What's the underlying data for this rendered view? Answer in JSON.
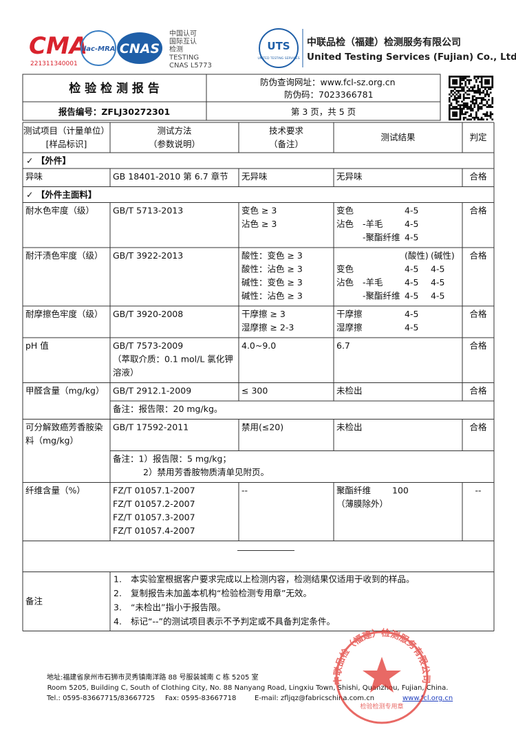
{
  "header": {
    "cma": {
      "mark": "CMA",
      "number": "221311340001"
    },
    "ilac": "ilac-MRA",
    "cnas": "CNAS",
    "accreditation": [
      "中国认可",
      "国际互认",
      "检测",
      "TESTING",
      "CNAS L5773"
    ],
    "uts": {
      "mark": "UTS",
      "sub": "UNITED TESTING SERVICES"
    },
    "company_cn": "中联品检（福建）检测服务有限公司",
    "company_en": "United Testing Services (Fujian) Co., Ltd."
  },
  "report": {
    "title": "检 验 检 测 报 告",
    "verify_url": "防伪查询网址：www.fcl-sz.org.cn",
    "verify_code": "防伪码：7023366781",
    "report_no": "报告编号：ZFLJ30272301",
    "page": "第 3 页，共 5 页"
  },
  "table": {
    "headers": [
      [
        "测试项目（计量单位）",
        "[样品标识]"
      ],
      [
        "测试方法",
        "（参数说明）"
      ],
      [
        "技术要求",
        "（备注）"
      ],
      [
        "测试结果"
      ],
      [
        "判定"
      ]
    ],
    "rows": [
      {
        "section": "✓ 【外件】"
      },
      {
        "item": [
          "异味"
        ],
        "method": [
          "GB 18401-2010 第 6.7 章节"
        ],
        "requirement": [
          "无异味"
        ],
        "result": [
          {
            "label": "无异味"
          }
        ],
        "verdict": "合格"
      },
      {
        "section": "✓ 【外件主面料】"
      },
      {
        "item": [
          "耐水色牢度（级）"
        ],
        "method": [
          "GB/T 5713-2013"
        ],
        "requirement": [
          "变色 ≥ 3",
          "沾色 ≥ 3"
        ],
        "result": [
          {
            "label": "变色",
            "values": [
              "4-5"
            ]
          },
          {
            "label": "沾色",
            "sub": "-羊毛",
            "values": [
              "4-5"
            ]
          },
          {
            "sub": "-聚酯纤维",
            "values": [
              "4-5"
            ]
          }
        ],
        "verdict": "合格"
      },
      {
        "item": [
          "耐汗渍色牢度（级）"
        ],
        "method": [
          "GB/T 3922-2013"
        ],
        "requirement": [
          "酸性：变色 ≥ 3",
          "酸性：沾色 ≥ 3",
          "碱性：变色 ≥ 3",
          "碱性：沾色 ≥ 3"
        ],
        "result": [
          {
            "values": [
              "(酸性)",
              "(碱性)"
            ]
          },
          {
            "label": "变色",
            "values": [
              "4-5",
              "4-5"
            ]
          },
          {
            "label": "沾色",
            "sub": "-羊毛",
            "values": [
              "4-5",
              "4-5"
            ]
          },
          {
            "sub": "-聚酯纤维",
            "values": [
              "4-5",
              "4-5"
            ]
          }
        ],
        "verdict": "合格"
      },
      {
        "item": [
          "耐摩擦色牢度（级）"
        ],
        "method": [
          "GB/T 3920-2008"
        ],
        "requirement": [
          "干摩擦 ≥ 3",
          "湿摩擦 ≥ 2-3"
        ],
        "result": [
          {
            "label": "干摩擦",
            "values": [
              "4-5"
            ]
          },
          {
            "label": "湿摩擦",
            "values": [
              "4-5"
            ]
          }
        ],
        "verdict": "合格"
      },
      {
        "item": [
          "pH 值"
        ],
        "method": [
          "GB/T 7573-2009",
          "（萃取介质：0.1 mol/L 氯化钾",
          "溶液）"
        ],
        "requirement": [
          "4.0~9.0"
        ],
        "result": [
          {
            "label": "6.7"
          }
        ],
        "verdict": "合格"
      },
      {
        "item": [
          "甲醛含量（mg/kg）"
        ],
        "method": [
          "GB/T 2912.1-2009"
        ],
        "requirement": [
          "≤ 300"
        ],
        "result": [
          {
            "label": "未检出"
          }
        ],
        "verdict": "合格",
        "note": [
          "备注：报告限：20 mg/kg。"
        ]
      },
      {
        "item": [
          "可分解致癌芳香胺染",
          "料（mg/kg）"
        ],
        "method": [
          "GB/T 17592-2011"
        ],
        "requirement": [
          "禁用(≤20)"
        ],
        "result": [
          {
            "label": "未检出"
          }
        ],
        "verdict": "合格",
        "note": [
          "备注：1）报告限：5 mg/kg；",
          "2）禁用芳香胺物质清单见附页。"
        ]
      },
      {
        "item": [
          "纤维含量（%）"
        ],
        "method": [
          "FZ/T 01057.1-2007",
          "FZ/T 01057.2-2007",
          "FZ/T 01057.3-2007",
          "FZ/T 01057.4-2007"
        ],
        "requirement": [
          "--"
        ],
        "result": [
          {
            "label": "聚酯纤维",
            "fiber": "100"
          },
          {
            "label": "（薄膜除外）"
          }
        ],
        "verdict": "--"
      }
    ]
  },
  "remarks": {
    "label": "备注",
    "items": [
      {
        "number": "1.",
        "text": "本实验室根据客户要求完成以上检测内容，检测结果仅适用于收到的样品。"
      },
      {
        "number": "2.",
        "text": "复制报告未加盖本机构“检验检测专用章”无效。"
      },
      {
        "number": "3.",
        "text": "“未检出”指小于报告限。"
      },
      {
        "number": "4.",
        "text": "标记“--”的测试项目表示不予判定或不具备判定条件。"
      }
    ]
  },
  "footer": {
    "address_cn": "地址:福建省泉州市石狮市灵秀镇南洋路 88 号服装城南 C 栋 5205 室",
    "address_en": "Room 5205, Building C, South of Clothing City, No. 88 Nanyang Road, Lingxiu Town, Shishi, Quanzhou, Fujian, China.",
    "tel": "Tel.: 0595-83667715/83667725",
    "fax": "Fax: 0595-83667718",
    "email": "E-mail: zfljqz@fabricschina.com.cn",
    "website": "www.fcl.org.cn"
  },
  "stamp": {
    "name": "中联品检（福建）检测服务有限公司",
    "purpose": "检验检测专用章"
  }
}
